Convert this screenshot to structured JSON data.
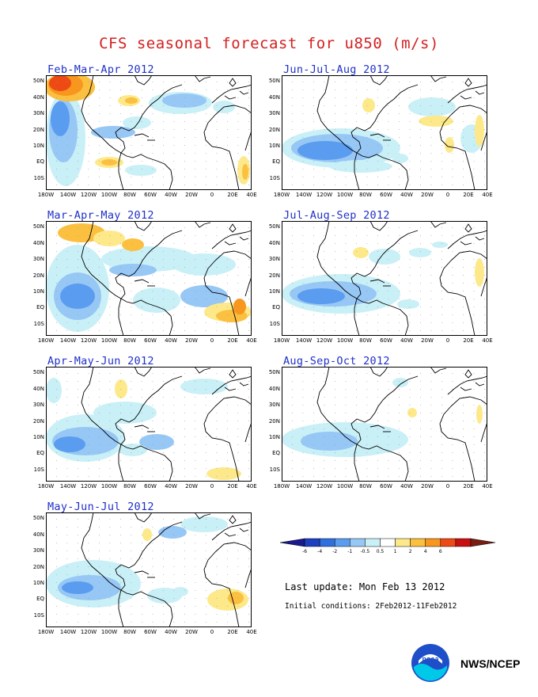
{
  "title": "CFS seasonal forecast for u850 (m/s)",
  "y_labels": [
    "50N",
    "40N",
    "30N",
    "20N",
    "10N",
    "EQ",
    "10S"
  ],
  "x_labels": [
    "180W",
    "140W",
    "120W",
    "100W",
    "80W",
    "60W",
    "40W",
    "20W",
    "0",
    "20E",
    "40E"
  ],
  "panels": [
    {
      "label": "Feb-Mar-Apr 2012"
    },
    {
      "label": "Jun-Jul-Aug 2012"
    },
    {
      "label": "Mar-Apr-May 2012"
    },
    {
      "label": "Jul-Aug-Sep 2012"
    },
    {
      "label": "Apr-May-Jun 2012"
    },
    {
      "label": "Aug-Sep-Oct 2012"
    },
    {
      "label": "May-Jun-Jul 2012"
    }
  ],
  "legend": {
    "ticks": [
      "-6",
      "-4",
      "-2",
      "-1",
      "-0.5",
      "0.5",
      "1",
      "2",
      "4",
      "6"
    ],
    "colors": [
      "#1a1a8c",
      "#1e3fbf",
      "#2f6fe0",
      "#5a9cf0",
      "#97c7f5",
      "#c9f0f7",
      "#ffffff",
      "#fde98a",
      "#fcc040",
      "#f8961e",
      "#ee4b14",
      "#c81010",
      "#7a1c10"
    ]
  },
  "last_update": "Last update: Mon Feb 13 2012",
  "initial_conditions": "Initial conditions: 2Feb2012-11Feb2012",
  "agency": "NWS/NCEP",
  "logo_text": "noaa"
}
